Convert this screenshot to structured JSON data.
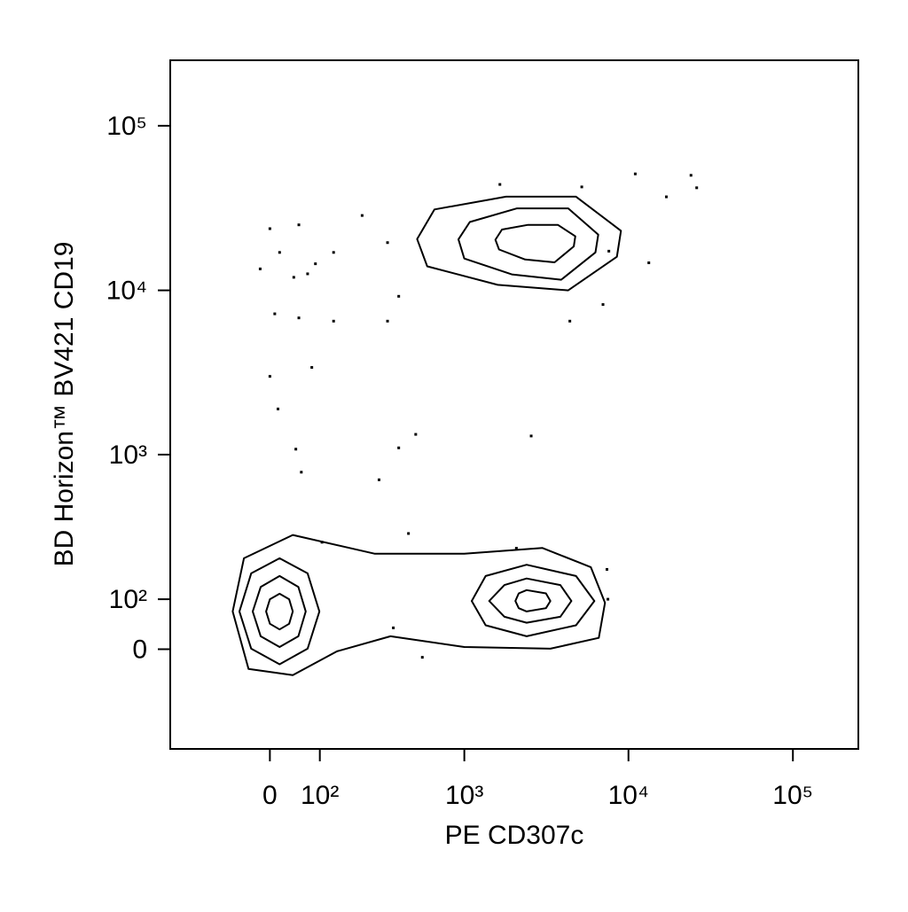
{
  "chart_data": {
    "type": "contour",
    "scale": "biexponential",
    "x_label": "PE CD307c",
    "y_label": "BD Horizon™ BV421 CD19",
    "color": "#000000",
    "xlim": [
      -250,
      250000
    ],
    "ylim": [
      -250,
      250000
    ],
    "xticks": [
      0,
      {
        "value": 100,
        "label": "10²"
      },
      {
        "value": 1000,
        "label": "10³"
      },
      {
        "value": 10000,
        "label": "10⁴"
      },
      {
        "value": 100000,
        "label": "10⁵"
      }
    ],
    "yticks": [
      0,
      {
        "value": 100,
        "label": "10²"
      },
      {
        "value": 1000,
        "label": "10³"
      },
      {
        "value": 10000,
        "label": "10⁴"
      },
      {
        "value": 100000,
        "label": "10⁵"
      }
    ],
    "contours": [
      {
        "x": [
          510,
          655,
          1800,
          4800,
          9000,
          8500,
          4300,
          1600,
          590
        ],
        "y": [
          20500,
          31000,
          37100,
          37100,
          23000,
          16000,
          10000,
          10800,
          14000
        ]
      },
      {
        "x": [
          920,
          1080,
          2100,
          4300,
          6550,
          6300,
          3900,
          1950,
          1000
        ],
        "y": [
          20400,
          26000,
          31500,
          31500,
          21800,
          17000,
          11600,
          12500,
          15600
        ]
      },
      {
        "x": [
          1550,
          1700,
          2450,
          3720,
          4750,
          4650,
          3550,
          2350,
          1630
        ],
        "y": [
          20300,
          23400,
          25000,
          25000,
          21300,
          18500,
          14800,
          15400,
          17700
        ]
      },
      {
        "x": [
          -72,
          -49,
          43,
          270,
          1000,
          3000,
          5900,
          7200,
          6600,
          3350,
          1000,
          345,
          143,
          43,
          -40
        ],
        "y": [
          73,
          217,
          313,
          234,
          234,
          256,
          187,
          92,
          21,
          1,
          4,
          24,
          -4,
          -49,
          -37
        ]
      },
      {
        "x": [
          99,
          73,
          18,
          -35,
          -58,
          -35,
          18,
          73
        ],
        "y": [
          73,
          1,
          -28,
          1,
          73,
          168,
          217,
          168
        ]
      },
      {
        "x": [
          69,
          54,
          18,
          -17,
          -32,
          -17,
          18,
          54
        ],
        "y": [
          73,
          24,
          4,
          24,
          73,
          130,
          160,
          130
        ]
      },
      {
        "x": [
          43,
          36,
          18,
          0,
          -7,
          0,
          18,
          36
        ],
        "y": [
          73,
          48,
          37,
          48,
          73,
          100,
          113,
          100
        ]
      },
      {
        "x": [
          6200,
          4800,
          2400,
          1350,
          1110,
          1350,
          2400,
          4800
        ],
        "y": [
          96,
          45,
          24,
          45,
          96,
          160,
          195,
          160
        ]
      },
      {
        "x": [
          4500,
          3850,
          2400,
          1760,
          1420,
          1760,
          2400,
          3850
        ],
        "y": [
          96,
          62,
          50,
          62,
          96,
          135,
          153,
          135
        ]
      },
      {
        "x": [
          3350,
          3150,
          2400,
          2150,
          2050,
          2150,
          2400,
          3150
        ],
        "y": [
          96,
          80,
          73,
          80,
          96,
          114,
          122,
          114
        ]
      }
    ],
    "events": {
      "x": [
        0,
        55,
        18,
        -18,
        73,
        45,
        90,
        134,
        9,
        55,
        82,
        0,
        15,
        49,
        60,
        134,
        222,
        330,
        390,
        330,
        1650,
        5200,
        11000,
        24000,
        26000,
        17000,
        13300,
        7000,
        4400,
        7600,
        290,
        390,
        500,
        2560,
        450,
        105,
        2080,
        7400,
        7500,
        550,
        360
      ],
      "y": [
        23700,
        25000,
        17000,
        13500,
        12600,
        12000,
        14500,
        17000,
        7200,
        6800,
        3400,
        3000,
        1900,
        1080,
        780,
        6500,
        28500,
        19500,
        9200,
        6500,
        44000,
        42500,
        51000,
        50000,
        42000,
        37000,
        14700,
        8200,
        6500,
        17300,
        700,
        1100,
        1330,
        1300,
        320,
        280,
        255,
        180,
        100,
        -15,
        40
      ]
    }
  }
}
